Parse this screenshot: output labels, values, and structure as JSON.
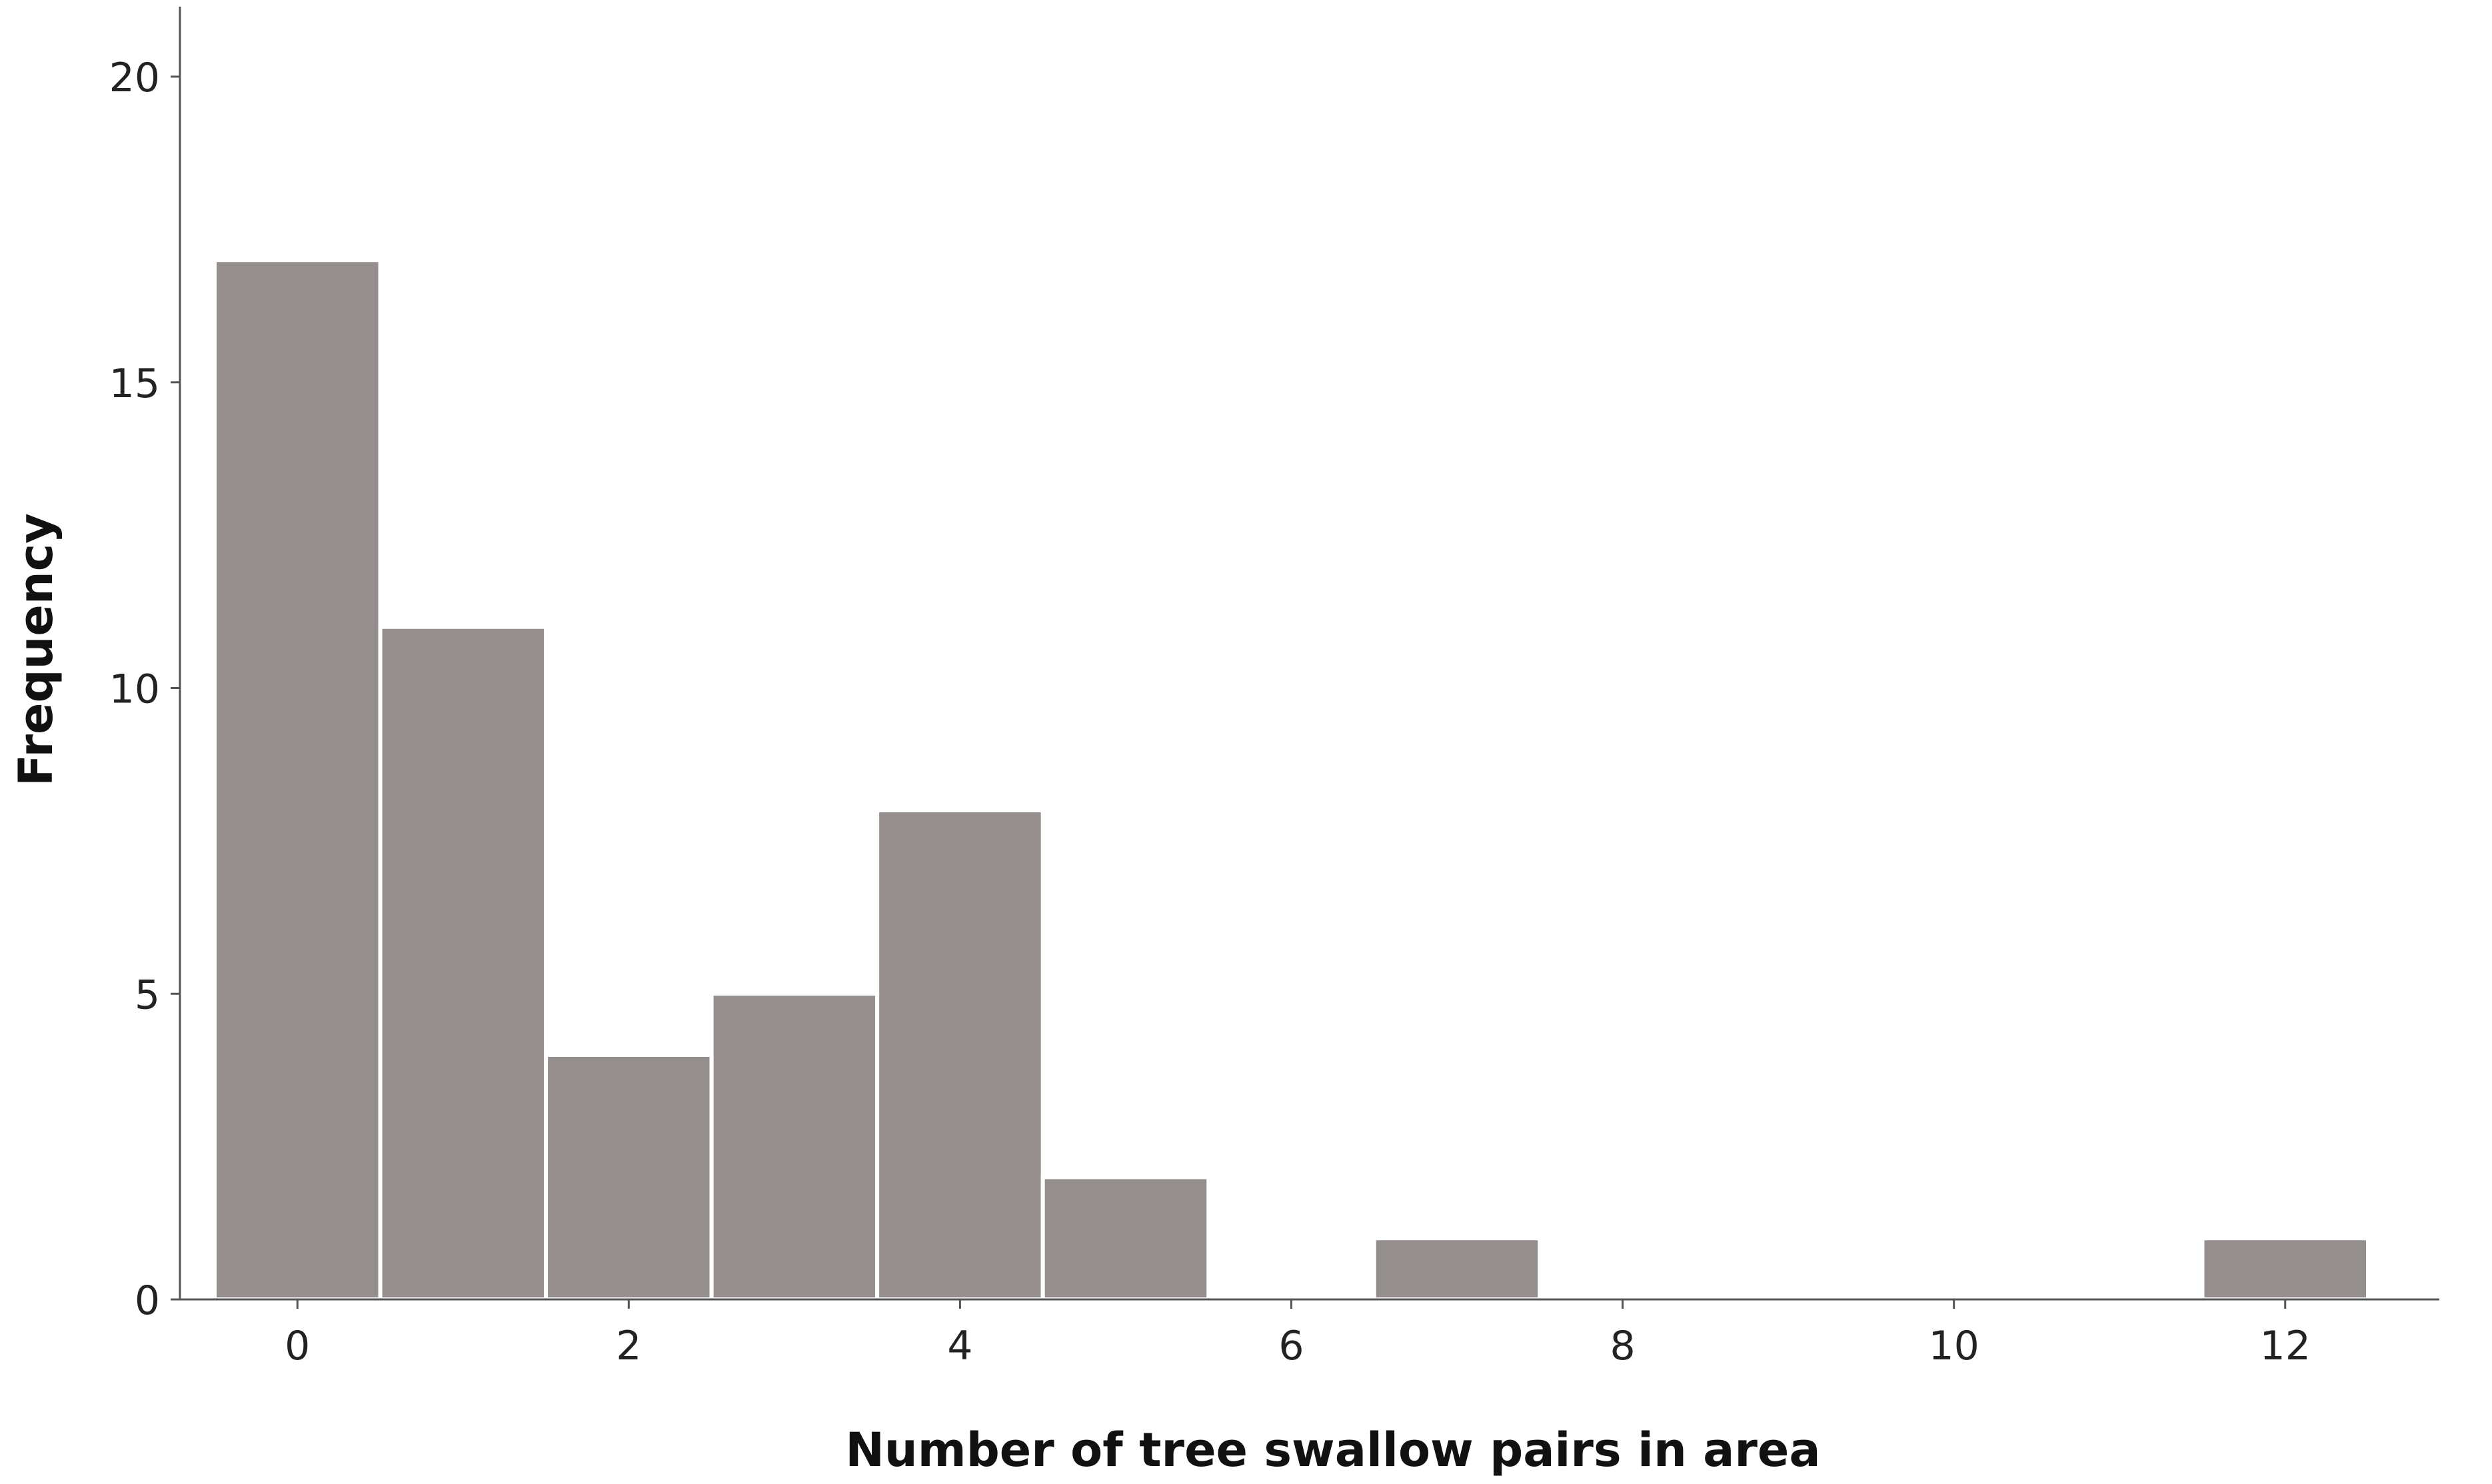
{
  "chart_data": {
    "type": "bar",
    "xlabel": "Number of tree swallow pairs in area",
    "ylabel": "Frequency",
    "x": [
      0,
      1,
      2,
      3,
      4,
      5,
      6,
      7,
      8,
      9,
      10,
      11,
      12
    ],
    "values": [
      17,
      11,
      4,
      5,
      8,
      2,
      0,
      1,
      0,
      0,
      0,
      0,
      1
    ],
    "xlim": [
      -0.5,
      12.5
    ],
    "ylim": [
      0,
      20
    ],
    "xticks": [
      0,
      2,
      4,
      6,
      8,
      10,
      12
    ],
    "yticks": [
      0,
      5,
      10,
      15,
      20
    ],
    "grid": false,
    "bar_color": "#948f8d"
  }
}
